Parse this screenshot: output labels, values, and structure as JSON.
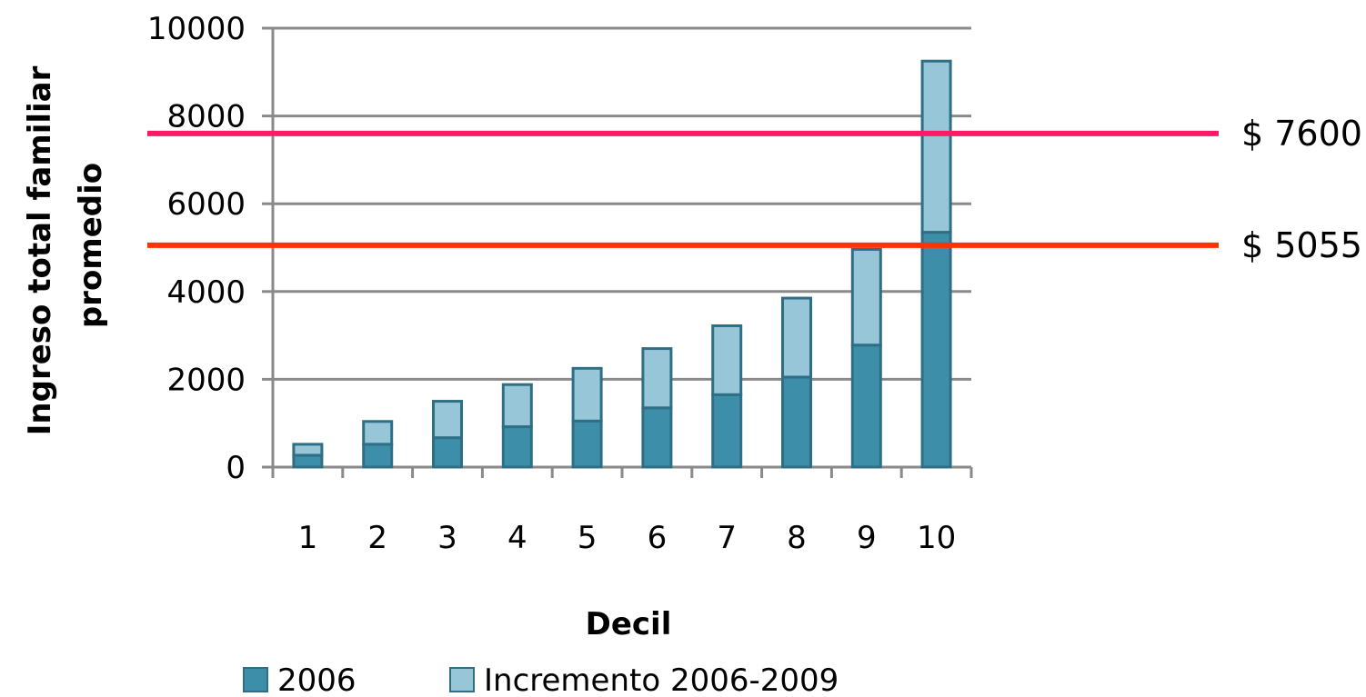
{
  "chart_data": {
    "type": "bar",
    "stacked": true,
    "title": "",
    "xlabel": "Decil",
    "ylabel": "Ingreso total familiar promedio",
    "ylabel_lines": [
      "Ingreso total familiar",
      "promedio"
    ],
    "ylim": [
      0,
      10000
    ],
    "yticks": [
      0,
      2000,
      4000,
      6000,
      8000,
      10000
    ],
    "grid": true,
    "legend_placement": "bottom",
    "categories": [
      "1",
      "2",
      "3",
      "4",
      "5",
      "6",
      "7",
      "8",
      "9",
      "10"
    ],
    "series": [
      {
        "name": "2006",
        "color": "#3d8ea8",
        "values": [
          270,
          520,
          670,
          920,
          1050,
          1350,
          1650,
          2050,
          2780,
          5350
        ]
      },
      {
        "name": "Incremento 2006-2009",
        "color": "#96c6d8",
        "values": [
          250,
          520,
          830,
          960,
          1200,
          1350,
          1570,
          1800,
          2180,
          3900
        ]
      }
    ],
    "reference_lines": [
      {
        "value": 7600,
        "label": "$ 7600",
        "color": "#ff1a66"
      },
      {
        "value": 5055,
        "label": "$ 5055",
        "color": "#ff3300"
      }
    ]
  }
}
